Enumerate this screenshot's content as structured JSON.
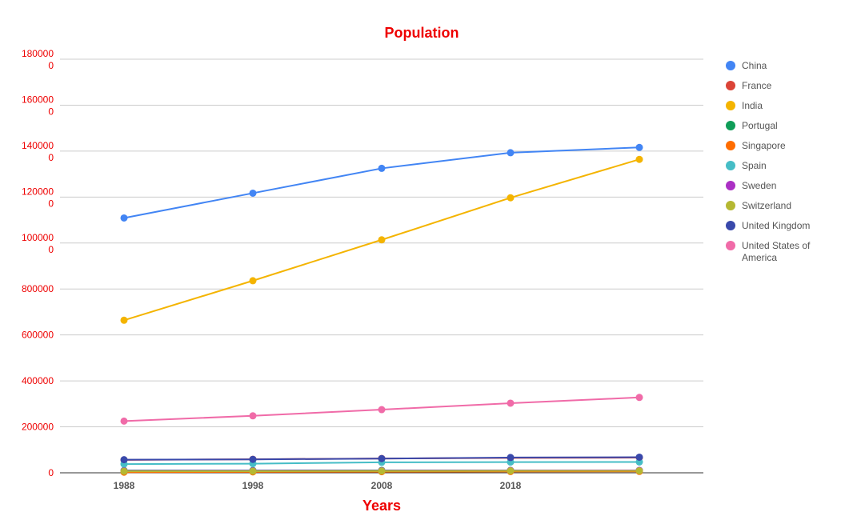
{
  "chart_data": {
    "type": "line",
    "title": "Population",
    "xlabel": "Years",
    "ylabel": "",
    "x": [
      1988,
      1998,
      2008,
      2018,
      2028
    ],
    "x_tick_labels": [
      "1988",
      "1998",
      "2008",
      "2018"
    ],
    "y_tick_labels": [
      {
        "value": 0,
        "lines": [
          "0"
        ]
      },
      {
        "value": 200000,
        "lines": [
          "200000"
        ]
      },
      {
        "value": 400000,
        "lines": [
          "400000"
        ]
      },
      {
        "value": 600000,
        "lines": [
          "600000"
        ]
      },
      {
        "value": 800000,
        "lines": [
          "800000"
        ]
      },
      {
        "value": 1000000,
        "lines": [
          "100000",
          "0"
        ]
      },
      {
        "value": 1200000,
        "lines": [
          "120000",
          "0"
        ]
      },
      {
        "value": 1400000,
        "lines": [
          "140000",
          "0"
        ]
      },
      {
        "value": 1600000,
        "lines": [
          "160000",
          "0"
        ]
      },
      {
        "value": 1800000,
        "lines": [
          "180000",
          "0"
        ]
      }
    ],
    "ylim": [
      0,
      1800000
    ],
    "grid": true,
    "legend_position": "right",
    "series": [
      {
        "name": "China",
        "color": "#4285f4",
        "values": [
          1109000,
          1217000,
          1325000,
          1393000,
          1416000
        ]
      },
      {
        "name": "France",
        "color": "#db4437",
        "values": [
          56000,
          58900,
          62300,
          64800,
          66000
        ]
      },
      {
        "name": "India",
        "color": "#f4b400",
        "values": [
          664000,
          836000,
          1014000,
          1197000,
          1364000
        ]
      },
      {
        "name": "Portugal",
        "color": "#0f9d58",
        "values": [
          10000,
          10100,
          10600,
          10300,
          10200
        ]
      },
      {
        "name": "Singapore",
        "color": "#ff6d00",
        "values": [
          2800,
          3900,
          4800,
          5600,
          6000
        ]
      },
      {
        "name": "Spain",
        "color": "#46bdc6",
        "values": [
          38000,
          39700,
          45600,
          46700,
          47000
        ]
      },
      {
        "name": "Sweden",
        "color": "#ab30c4",
        "values": [
          8400,
          8850,
          9200,
          10200,
          10500
        ]
      },
      {
        "name": "Switzerland",
        "color": "#b5b832",
        "values": [
          6600,
          7100,
          7650,
          8500,
          8900
        ]
      },
      {
        "name": "United Kingdom",
        "color": "#3949ab",
        "values": [
          57000,
          58500,
          61800,
          66400,
          68000
        ]
      },
      {
        "name": "United States of America",
        "color": "#f06ba8",
        "values": [
          225000,
          248000,
          275000,
          303000,
          328000
        ]
      }
    ]
  }
}
